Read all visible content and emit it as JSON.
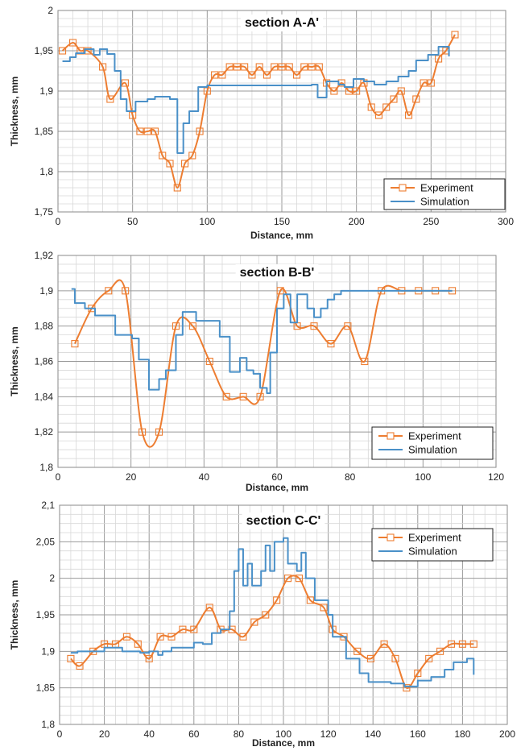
{
  "chart_data": [
    {
      "type": "line",
      "title": "section A-A'",
      "xlabel": "Distance, mm",
      "ylabel": "Thickness, mm",
      "xlim": [
        0,
        300
      ],
      "ylim": [
        1.75,
        2
      ],
      "xticks": [
        "0",
        "50",
        "100",
        "150",
        "200",
        "250",
        "300"
      ],
      "yticks": [
        "1,75",
        "1,8",
        "1,85",
        "1,9",
        "1,95",
        "2"
      ],
      "grid": true,
      "legend": "bottom-right",
      "series": [
        {
          "name": "Experiment",
          "color": "#ED7D31",
          "marker": "square",
          "smooth": true,
          "x": [
            3,
            10,
            15,
            20,
            30,
            35,
            45,
            50,
            55,
            60,
            65,
            70,
            75,
            80,
            85,
            90,
            95,
            100,
            105,
            110,
            115,
            120,
            125,
            130,
            135,
            140,
            145,
            150,
            155,
            160,
            165,
            170,
            175,
            180,
            185,
            190,
            195,
            200,
            205,
            210,
            215,
            220,
            225,
            230,
            235,
            240,
            245,
            250,
            255,
            260,
            266
          ],
          "y": [
            1.95,
            1.96,
            1.95,
            1.95,
            1.93,
            1.89,
            1.91,
            1.87,
            1.85,
            1.85,
            1.85,
            1.82,
            1.81,
            1.78,
            1.81,
            1.82,
            1.85,
            1.9,
            1.92,
            1.92,
            1.93,
            1.93,
            1.93,
            1.92,
            1.93,
            1.92,
            1.93,
            1.93,
            1.93,
            1.92,
            1.93,
            1.93,
            1.93,
            1.91,
            1.9,
            1.91,
            1.9,
            1.9,
            1.91,
            1.88,
            1.87,
            1.88,
            1.89,
            1.9,
            1.87,
            1.89,
            1.91,
            1.91,
            1.94,
            1.95,
            1.97
          ]
        },
        {
          "name": "Simulation",
          "color": "#4A90C8",
          "step": true,
          "x": [
            3,
            8,
            12,
            18,
            24,
            28,
            33,
            38,
            42,
            46,
            52,
            60,
            65,
            75,
            80,
            84,
            88,
            94,
            100,
            170,
            174,
            180,
            188,
            192,
            198,
            205,
            212,
            220,
            228,
            235,
            240,
            248,
            255,
            262
          ],
          "y": [
            1.937,
            1.942,
            1.947,
            1.952,
            1.945,
            1.952,
            1.946,
            1.925,
            1.89,
            1.875,
            1.887,
            1.89,
            1.893,
            1.89,
            1.823,
            1.86,
            1.875,
            1.905,
            1.907,
            1.908,
            1.892,
            1.912,
            1.908,
            1.905,
            1.915,
            1.912,
            1.908,
            1.912,
            1.918,
            1.925,
            1.938,
            1.945,
            1.955,
            1.943
          ]
        }
      ]
    },
    {
      "type": "line",
      "title": "section B-B'",
      "xlabel": "Distance, mm",
      "ylabel": "Thickness, mm",
      "xlim": [
        0,
        130
      ],
      "ylim": [
        1.8,
        1.92
      ],
      "xticks": [
        "0",
        "20",
        "40",
        "60",
        "80",
        "100",
        "120"
      ],
      "yticks": [
        "1,8",
        "1,82",
        "1,84",
        "1,86",
        "1,88",
        "1,9",
        "1,92"
      ],
      "grid": true,
      "legend": "bottom-right",
      "series": [
        {
          "name": "Experiment",
          "color": "#ED7D31",
          "marker": "square",
          "smooth": true,
          "x": [
            5,
            10,
            15,
            20,
            25,
            30,
            35,
            40,
            45,
            50,
            55,
            60,
            66,
            71,
            76,
            81,
            86,
            91,
            96,
            102,
            107,
            112,
            117
          ],
          "y": [
            1.87,
            1.89,
            1.9,
            1.9,
            1.82,
            1.82,
            1.88,
            1.88,
            1.86,
            1.84,
            1.84,
            1.84,
            1.9,
            1.88,
            1.88,
            1.87,
            1.88,
            1.86,
            1.9,
            1.9,
            1.9,
            1.9,
            1.9
          ]
        },
        {
          "name": "Simulation",
          "color": "#4A90C8",
          "step": true,
          "x": [
            4,
            5,
            8,
            11,
            17,
            22,
            24,
            27,
            30,
            32,
            35,
            37,
            41,
            48,
            51,
            54,
            56,
            58,
            60,
            62,
            63,
            65,
            67,
            69,
            71,
            74,
            76,
            78,
            80,
            82,
            84,
            100,
            117
          ],
          "y": [
            1.901,
            1.893,
            1.89,
            1.886,
            1.875,
            1.873,
            1.861,
            1.844,
            1.85,
            1.855,
            1.875,
            1.888,
            1.883,
            1.874,
            1.854,
            1.862,
            1.855,
            1.853,
            1.845,
            1.842,
            1.865,
            1.89,
            1.898,
            1.882,
            1.898,
            1.89,
            1.885,
            1.89,
            1.895,
            1.898,
            1.9,
            1.9,
            1.9
          ]
        }
      ]
    },
    {
      "type": "line",
      "title": "section C-C'",
      "xlabel": "Distance, mm",
      "ylabel": "Thickness, mm",
      "xlim": [
        0,
        200
      ],
      "ylim": [
        1.8,
        2.1
      ],
      "xticks": [
        "0",
        "20",
        "40",
        "60",
        "80",
        "100",
        "120",
        "140",
        "160",
        "180",
        "200"
      ],
      "yticks": [
        "1,8",
        "1,85",
        "1,9",
        "1,95",
        "2",
        "2,05",
        "2,1"
      ],
      "grid": true,
      "legend": "top-right",
      "series": [
        {
          "name": "Experiment",
          "color": "#ED7D31",
          "marker": "square",
          "smooth": true,
          "x": [
            5,
            9,
            15,
            20,
            25,
            30,
            35,
            40,
            45,
            50,
            55,
            60,
            67,
            72,
            77,
            82,
            87,
            92,
            97,
            102,
            107,
            112,
            118,
            122,
            127,
            133,
            139,
            145,
            150,
            155,
            160,
            165,
            170,
            175,
            180,
            185
          ],
          "y": [
            1.89,
            1.88,
            1.9,
            1.91,
            1.91,
            1.92,
            1.91,
            1.89,
            1.92,
            1.92,
            1.93,
            1.93,
            1.96,
            1.93,
            1.93,
            1.92,
            1.94,
            1.95,
            1.97,
            2.0,
            2.0,
            1.97,
            1.96,
            1.93,
            1.92,
            1.9,
            1.89,
            1.91,
            1.89,
            1.85,
            1.87,
            1.89,
            1.9,
            1.91,
            1.91,
            1.91
          ]
        },
        {
          "name": "Simulation",
          "color": "#4A90C8",
          "step": true,
          "x": [
            5,
            8,
            15,
            20,
            28,
            32,
            36,
            40,
            44,
            46,
            50,
            56,
            60,
            64,
            68,
            72,
            76,
            78,
            80,
            82,
            84,
            86,
            90,
            92,
            94,
            96,
            100,
            102,
            106,
            108,
            110,
            114,
            120,
            122,
            128,
            134,
            138,
            148,
            154,
            160,
            166,
            172,
            176,
            182,
            185
          ],
          "y": [
            1.898,
            1.9,
            1.9,
            1.905,
            1.9,
            1.9,
            1.898,
            1.9,
            1.895,
            1.9,
            1.905,
            1.905,
            1.912,
            1.91,
            1.925,
            1.93,
            1.955,
            2.01,
            2.04,
            1.99,
            2.02,
            1.99,
            2.01,
            2.045,
            2.01,
            2.05,
            2.055,
            2.02,
            2.01,
            2.035,
            2.0,
            1.97,
            1.95,
            1.92,
            1.89,
            1.87,
            1.858,
            1.856,
            1.852,
            1.86,
            1.865,
            1.875,
            1.885,
            1.89,
            1.868
          ]
        }
      ]
    }
  ]
}
